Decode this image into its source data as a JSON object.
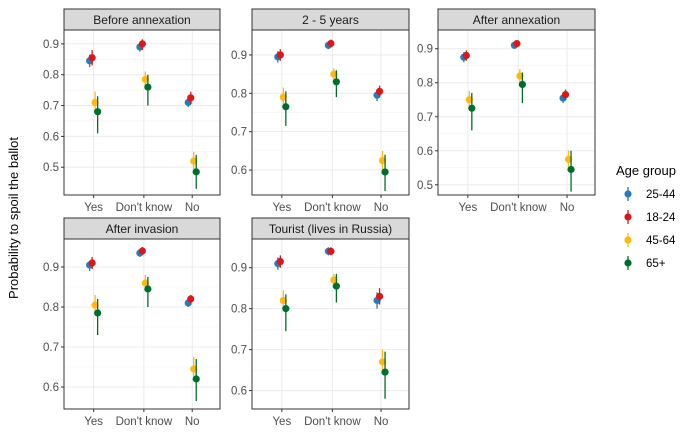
{
  "chart_data": {
    "type": "scatter",
    "ylabel": "Probability to spoil the ballot",
    "xlabel": "",
    "categories": [
      "Yes",
      "Don't know",
      "No"
    ],
    "legend": {
      "title": "Age group",
      "placement": "right",
      "groups": [
        {
          "name": "25-44",
          "color": "#2c7bb6"
        },
        {
          "name": "18-24",
          "color": "#d7191c"
        },
        {
          "name": "45-64",
          "color": "#fdb913"
        },
        {
          "name": "65+",
          "color": "#006d2c"
        }
      ]
    },
    "grid": true,
    "panels": [
      {
        "title": "Before annexation",
        "ylim": [
          0.41,
          0.945
        ],
        "yticks": [
          0.5,
          0.6,
          0.7,
          0.8,
          0.9
        ],
        "series": [
          {
            "name": "25-44",
            "values": [
              0.845,
              0.89,
              0.71
            ],
            "lower": [
              0.825,
              0.875,
              0.695
            ],
            "upper": [
              0.865,
              0.905,
              0.725
            ]
          },
          {
            "name": "18-24",
            "values": [
              0.855,
              0.9,
              0.725
            ],
            "lower": [
              0.83,
              0.88,
              0.705
            ],
            "upper": [
              0.88,
              0.915,
              0.745
            ]
          },
          {
            "name": "45-64",
            "values": [
              0.71,
              0.785,
              0.52
            ],
            "lower": [
              0.68,
              0.76,
              0.49
            ],
            "upper": [
              0.745,
              0.81,
              0.55
            ]
          },
          {
            "name": "65+",
            "values": [
              0.68,
              0.76,
              0.485
            ],
            "lower": [
              0.61,
              0.7,
              0.43
            ],
            "upper": [
              0.73,
              0.8,
              0.54
            ]
          }
        ]
      },
      {
        "title": "2 - 5 years",
        "ylim": [
          0.535,
          0.965
        ],
        "yticks": [
          0.6,
          0.7,
          0.8,
          0.9
        ],
        "series": [
          {
            "name": "25-44",
            "values": [
              0.895,
              0.925,
              0.795
            ],
            "lower": [
              0.88,
              0.915,
              0.78
            ],
            "upper": [
              0.91,
              0.935,
              0.81
            ]
          },
          {
            "name": "18-24",
            "values": [
              0.9,
              0.93,
              0.805
            ],
            "lower": [
              0.885,
              0.92,
              0.79
            ],
            "upper": [
              0.915,
              0.94,
              0.82
            ]
          },
          {
            "name": "45-64",
            "values": [
              0.79,
              0.85,
              0.625
            ],
            "lower": [
              0.765,
              0.83,
              0.6
            ],
            "upper": [
              0.815,
              0.865,
              0.65
            ]
          },
          {
            "name": "65+",
            "values": [
              0.765,
              0.83,
              0.595
            ],
            "lower": [
              0.715,
              0.79,
              0.545
            ],
            "upper": [
              0.805,
              0.86,
              0.64
            ]
          }
        ]
      },
      {
        "title": "After annexation",
        "ylim": [
          0.47,
          0.955
        ],
        "yticks": [
          0.5,
          0.6,
          0.7,
          0.8,
          0.9
        ],
        "series": [
          {
            "name": "25-44",
            "values": [
              0.875,
              0.91,
              0.755
            ],
            "lower": [
              0.86,
              0.9,
              0.74
            ],
            "upper": [
              0.89,
              0.92,
              0.77
            ]
          },
          {
            "name": "18-24",
            "values": [
              0.88,
              0.915,
              0.765
            ],
            "lower": [
              0.865,
              0.905,
              0.75
            ],
            "upper": [
              0.895,
              0.925,
              0.78
            ]
          },
          {
            "name": "45-64",
            "values": [
              0.75,
              0.82,
              0.575
            ],
            "lower": [
              0.725,
              0.8,
              0.55
            ],
            "upper": [
              0.775,
              0.84,
              0.6
            ]
          },
          {
            "name": "65+",
            "values": [
              0.725,
              0.795,
              0.545
            ],
            "lower": [
              0.66,
              0.74,
              0.48
            ],
            "upper": [
              0.77,
              0.83,
              0.6
            ]
          }
        ]
      },
      {
        "title": "After invasion",
        "ylim": [
          0.545,
          0.97
        ],
        "yticks": [
          0.6,
          0.7,
          0.8,
          0.9
        ],
        "series": [
          {
            "name": "25-44",
            "values": [
              0.905,
              0.935,
              0.81
            ],
            "lower": [
              0.89,
              0.925,
              0.8
            ],
            "upper": [
              0.915,
              0.945,
              0.82
            ]
          },
          {
            "name": "18-24",
            "values": [
              0.91,
              0.94,
              0.82
            ],
            "lower": [
              0.895,
              0.93,
              0.81
            ],
            "upper": [
              0.925,
              0.95,
              0.83
            ]
          },
          {
            "name": "45-64",
            "values": [
              0.805,
              0.86,
              0.645
            ],
            "lower": [
              0.78,
              0.84,
              0.62
            ],
            "upper": [
              0.83,
              0.88,
              0.675
            ]
          },
          {
            "name": "65+",
            "values": [
              0.785,
              0.845,
              0.62
            ],
            "lower": [
              0.73,
              0.8,
              0.565
            ],
            "upper": [
              0.82,
              0.875,
              0.67
            ]
          }
        ]
      },
      {
        "title": "Tourist (lives in Russia)",
        "ylim": [
          0.555,
          0.97
        ],
        "yticks": [
          0.6,
          0.7,
          0.8,
          0.9
        ],
        "series": [
          {
            "name": "25-44",
            "values": [
              0.91,
              0.94,
              0.82
            ],
            "lower": [
              0.895,
              0.93,
              0.8
            ],
            "upper": [
              0.925,
              0.95,
              0.84
            ]
          },
          {
            "name": "18-24",
            "values": [
              0.915,
              0.94,
              0.83
            ],
            "lower": [
              0.9,
              0.93,
              0.81
            ],
            "upper": [
              0.93,
              0.95,
              0.85
            ]
          },
          {
            "name": "45-64",
            "values": [
              0.82,
              0.87,
              0.67
            ],
            "lower": [
              0.795,
              0.85,
              0.64
            ],
            "upper": [
              0.845,
              0.885,
              0.7
            ]
          },
          {
            "name": "65+",
            "values": [
              0.8,
              0.855,
              0.645
            ],
            "lower": [
              0.745,
              0.815,
              0.58
            ],
            "upper": [
              0.835,
              0.885,
              0.695
            ]
          }
        ]
      }
    ]
  }
}
